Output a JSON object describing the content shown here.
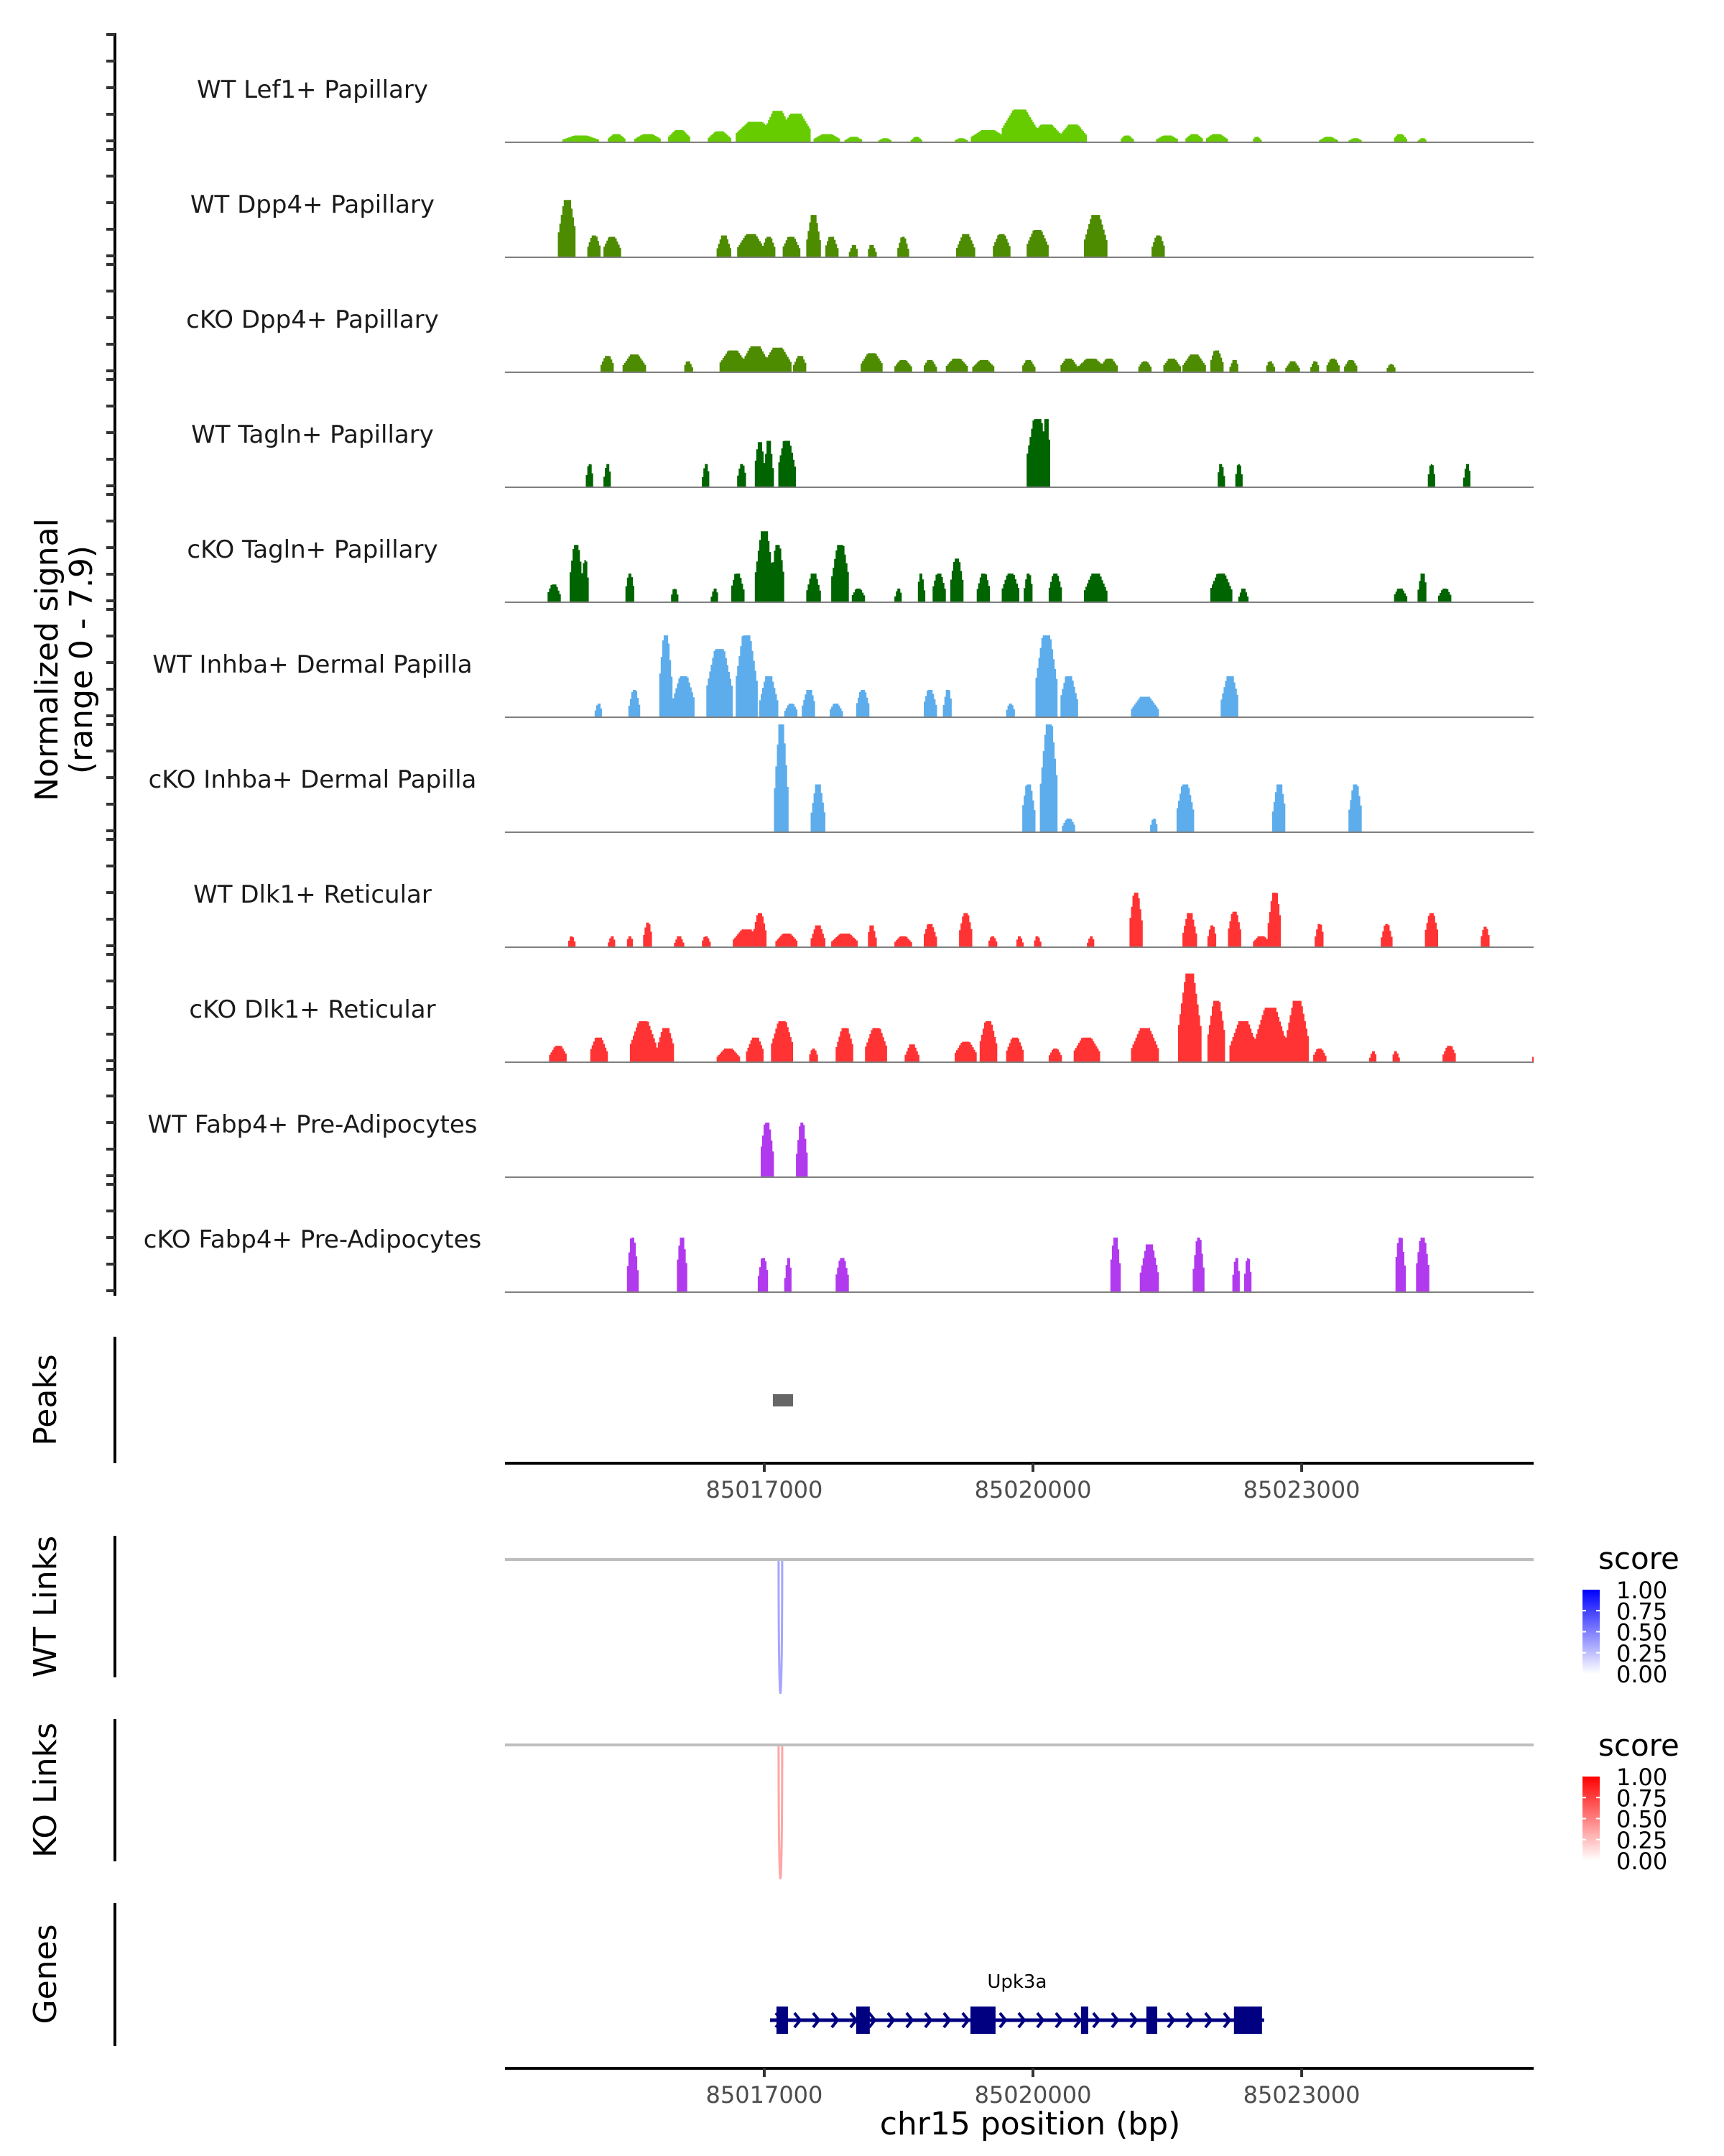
{
  "chart_data": {
    "type": "area",
    "title": "",
    "region": {
      "chrom": "chr15",
      "start": 85014105,
      "end": 85025590
    },
    "ylabel": "Normalized signal",
    "ylabel_sub": "(range 0 - 7.9)",
    "ylim": [
      0,
      7.9
    ],
    "xlabel": "chr15 position (bp)",
    "x_ticks": [
      85017000,
      85020000,
      85023000
    ],
    "x_tick_labels": [
      "85017000",
      "85020000",
      "85023000"
    ],
    "tracks": [
      {
        "name": "WT Lef1+ Papillary",
        "color": "#66CC00",
        "peaks": [
          [
            85014950,
            400,
            0.5
          ],
          [
            85015350,
            200,
            0.6
          ],
          [
            85015700,
            300,
            0.6
          ],
          [
            85016050,
            250,
            0.9
          ],
          [
            85016500,
            250,
            0.8
          ],
          [
            85016900,
            450,
            1.5
          ],
          [
            85017150,
            300,
            2.3
          ],
          [
            85017350,
            350,
            2.1
          ],
          [
            85017700,
            300,
            0.6
          ],
          [
            85018000,
            200,
            0.4
          ],
          [
            85018350,
            150,
            0.3
          ],
          [
            85018700,
            120,
            0.4
          ],
          [
            85019200,
            150,
            0.3
          ],
          [
            85019500,
            400,
            0.9
          ],
          [
            85019850,
            400,
            2.4
          ],
          [
            85020150,
            350,
            1.3
          ],
          [
            85020450,
            300,
            1.3
          ],
          [
            85021050,
            150,
            0.5
          ],
          [
            85021500,
            250,
            0.5
          ],
          [
            85021800,
            200,
            0.6
          ],
          [
            85022050,
            250,
            0.6
          ],
          [
            85022500,
            100,
            0.4
          ],
          [
            85023300,
            200,
            0.4
          ],
          [
            85023600,
            150,
            0.3
          ],
          [
            85024100,
            150,
            0.6
          ],
          [
            85024350,
            100,
            0.3
          ]
        ]
      },
      {
        "name": "WT Dpp4+ Papillary",
        "color": "#4D8B00",
        "peaks": [
          [
            85014800,
            200,
            4.2
          ],
          [
            85015100,
            150,
            1.6
          ],
          [
            85015300,
            200,
            1.5
          ],
          [
            85016550,
            150,
            1.6
          ],
          [
            85016850,
            300,
            1.7
          ],
          [
            85017050,
            150,
            1.5
          ],
          [
            85017300,
            200,
            1.5
          ],
          [
            85017550,
            150,
            3.1
          ],
          [
            85017750,
            150,
            1.5
          ],
          [
            85018000,
            100,
            0.9
          ],
          [
            85018200,
            100,
            0.9
          ],
          [
            85018550,
            120,
            1.5
          ],
          [
            85019250,
            200,
            1.7
          ],
          [
            85019650,
            200,
            1.7
          ],
          [
            85020050,
            250,
            2.0
          ],
          [
            85020700,
            250,
            3.1
          ],
          [
            85021400,
            150,
            1.6
          ]
        ]
      },
      {
        "name": "cKO Dpp4+ Papillary",
        "color": "#4D8B00",
        "peaks": [
          [
            85015250,
            150,
            1.2
          ],
          [
            85015550,
            250,
            1.3
          ],
          [
            85016150,
            100,
            0.8
          ],
          [
            85016650,
            300,
            1.6
          ],
          [
            85016900,
            300,
            1.9
          ],
          [
            85017150,
            300,
            1.8
          ],
          [
            85017400,
            150,
            1.2
          ],
          [
            85018200,
            250,
            1.4
          ],
          [
            85018550,
            200,
            0.9
          ],
          [
            85018850,
            150,
            0.9
          ],
          [
            85019150,
            250,
            1.0
          ],
          [
            85019450,
            250,
            0.9
          ],
          [
            85019950,
            150,
            0.9
          ],
          [
            85020400,
            200,
            1.0
          ],
          [
            85020650,
            300,
            1.0
          ],
          [
            85020850,
            200,
            1.0
          ],
          [
            85021250,
            150,
            0.8
          ],
          [
            85021550,
            200,
            1.0
          ],
          [
            85021800,
            250,
            1.3
          ],
          [
            85022050,
            150,
            1.6
          ],
          [
            85022250,
            100,
            0.9
          ],
          [
            85022650,
            100,
            0.8
          ],
          [
            85022900,
            150,
            0.8
          ],
          [
            85023150,
            100,
            0.8
          ],
          [
            85023350,
            150,
            1.0
          ],
          [
            85023550,
            150,
            0.9
          ],
          [
            85024000,
            100,
            0.6
          ]
        ]
      },
      {
        "name": "WT Tagln+ Papillary",
        "color": "#006400",
        "peaks": [
          [
            85015050,
            80,
            1.7
          ],
          [
            85015250,
            80,
            1.7
          ],
          [
            85016350,
            80,
            1.7
          ],
          [
            85016750,
            100,
            1.7
          ],
          [
            85016950,
            120,
            3.3
          ],
          [
            85017050,
            100,
            3.4
          ],
          [
            85017250,
            200,
            3.4
          ],
          [
            85020050,
            250,
            5.0
          ],
          [
            85020150,
            100,
            5.0
          ],
          [
            85022100,
            80,
            1.7
          ],
          [
            85022300,
            80,
            1.7
          ],
          [
            85024450,
            80,
            1.7
          ],
          [
            85024850,
            80,
            1.7
          ]
        ]
      },
      {
        "name": "cKO Tagln+ Papillary",
        "color": "#006400",
        "peaks": [
          [
            85014650,
            150,
            1.3
          ],
          [
            85014900,
            150,
            4.2
          ],
          [
            85015000,
            80,
            3.1
          ],
          [
            85015500,
            100,
            2.1
          ],
          [
            85016000,
            80,
            1.0
          ],
          [
            85016450,
            80,
            1.0
          ],
          [
            85016700,
            150,
            2.1
          ],
          [
            85017000,
            200,
            5.2
          ],
          [
            85017150,
            150,
            4.2
          ],
          [
            85017550,
            150,
            2.1
          ],
          [
            85017850,
            200,
            4.2
          ],
          [
            85018050,
            150,
            1.0
          ],
          [
            85018500,
            80,
            1.0
          ],
          [
            85018750,
            80,
            2.1
          ],
          [
            85018950,
            150,
            2.1
          ],
          [
            85019150,
            150,
            3.2
          ],
          [
            85019450,
            150,
            2.1
          ],
          [
            85019750,
            200,
            2.1
          ],
          [
            85019950,
            100,
            2.1
          ],
          [
            85020250,
            150,
            2.1
          ],
          [
            85020700,
            250,
            2.1
          ],
          [
            85022100,
            250,
            2.1
          ],
          [
            85022350,
            100,
            1.0
          ],
          [
            85024100,
            150,
            1.0
          ],
          [
            85024350,
            100,
            2.1
          ],
          [
            85024600,
            150,
            1.0
          ]
        ]
      },
      {
        "name": "WT Inhba+ Dermal Papilla",
        "color": "#5DADEC",
        "peaks": [
          [
            85015150,
            80,
            1.0
          ],
          [
            85015550,
            120,
            2.0
          ],
          [
            85015900,
            150,
            6.0
          ],
          [
            85016100,
            250,
            3.0
          ],
          [
            85016500,
            300,
            5.0
          ],
          [
            85016800,
            250,
            6.0
          ],
          [
            85017050,
            200,
            3.0
          ],
          [
            85017300,
            150,
            1.0
          ],
          [
            85017500,
            150,
            2.0
          ],
          [
            85017800,
            150,
            1.0
          ],
          [
            85018100,
            150,
            2.0
          ],
          [
            85018850,
            150,
            2.0
          ],
          [
            85019050,
            100,
            2.0
          ],
          [
            85019750,
            100,
            1.0
          ],
          [
            85020150,
            250,
            6.0
          ],
          [
            85020400,
            200,
            3.0
          ],
          [
            85021250,
            300,
            1.5
          ],
          [
            85022200,
            200,
            3.0
          ]
        ]
      },
      {
        "name": "cKO Inhba+ Dermal Papilla",
        "color": "#5DADEC",
        "peaks": [
          [
            85017190,
            150,
            7.9
          ],
          [
            85017600,
            150,
            3.5
          ],
          [
            85019950,
            150,
            3.5
          ],
          [
            85020180,
            200,
            7.9
          ],
          [
            85020400,
            150,
            1.0
          ],
          [
            85021350,
            80,
            1.0
          ],
          [
            85021700,
            200,
            3.5
          ],
          [
            85022750,
            150,
            3.5
          ],
          [
            85023600,
            150,
            3.5
          ]
        ]
      },
      {
        "name": "WT Dlk1+ Reticular",
        "color": "#FF3333",
        "peaks": [
          [
            85014850,
            80,
            0.8
          ],
          [
            85015300,
            80,
            0.8
          ],
          [
            85015500,
            80,
            0.8
          ],
          [
            85015700,
            100,
            1.8
          ],
          [
            85016050,
            100,
            0.8
          ],
          [
            85016350,
            100,
            0.8
          ],
          [
            85016800,
            300,
            1.3
          ],
          [
            85016950,
            150,
            2.5
          ],
          [
            85017250,
            250,
            1.0
          ],
          [
            85017600,
            150,
            1.6
          ],
          [
            85017900,
            300,
            1.0
          ],
          [
            85018200,
            100,
            1.6
          ],
          [
            85018550,
            200,
            0.8
          ],
          [
            85018850,
            150,
            1.7
          ],
          [
            85019250,
            150,
            2.5
          ],
          [
            85019550,
            100,
            0.8
          ],
          [
            85019850,
            80,
            0.8
          ],
          [
            85020050,
            80,
            0.8
          ],
          [
            85020650,
            80,
            0.8
          ],
          [
            85021150,
            150,
            4.0
          ],
          [
            85021750,
            150,
            2.5
          ],
          [
            85022000,
            100,
            1.6
          ],
          [
            85022250,
            150,
            2.6
          ],
          [
            85022550,
            200,
            0.8
          ],
          [
            85022700,
            150,
            4.0
          ],
          [
            85023200,
            100,
            1.7
          ],
          [
            85023950,
            120,
            1.7
          ],
          [
            85024450,
            150,
            2.5
          ],
          [
            85025050,
            100,
            1.5
          ]
        ]
      },
      {
        "name": "cKO Dlk1+ Reticular",
        "color": "#FF3333",
        "peaks": [
          [
            85014700,
            200,
            1.2
          ],
          [
            85015150,
            200,
            1.8
          ],
          [
            85015650,
            300,
            3.0
          ],
          [
            85015900,
            200,
            2.5
          ],
          [
            85016600,
            250,
            1.0
          ],
          [
            85016900,
            200,
            1.8
          ],
          [
            85017200,
            250,
            3.0
          ],
          [
            85017550,
            100,
            1.0
          ],
          [
            85017900,
            200,
            2.5
          ],
          [
            85018250,
            250,
            2.5
          ],
          [
            85018650,
            150,
            1.3
          ],
          [
            85019250,
            250,
            1.5
          ],
          [
            85019500,
            200,
            3.0
          ],
          [
            85019800,
            200,
            1.8
          ],
          [
            85020250,
            150,
            1.0
          ],
          [
            85020600,
            300,
            1.8
          ],
          [
            85021250,
            300,
            2.5
          ],
          [
            85021750,
            250,
            6.5
          ],
          [
            85022050,
            200,
            4.5
          ],
          [
            85022350,
            300,
            3.0
          ],
          [
            85022650,
            350,
            4.0
          ],
          [
            85022950,
            250,
            4.5
          ],
          [
            85023200,
            150,
            1.0
          ],
          [
            85023800,
            80,
            0.8
          ],
          [
            85024050,
            80,
            0.8
          ],
          [
            85024650,
            150,
            1.2
          ],
          [
            85025600,
            50,
            0.6
          ]
        ]
      },
      {
        "name": "WT Fabp4+ Pre-Adipocytes",
        "color": "#B23AEE",
        "peaks": [
          [
            85017030,
            150,
            4.0
          ],
          [
            85017420,
            120,
            4.0
          ]
        ]
      },
      {
        "name": "cKO Fabp4+ Pre-Adipocytes",
        "color": "#B23AEE",
        "peaks": [
          [
            85015530,
            120,
            4.0
          ],
          [
            85016080,
            120,
            4.0
          ],
          [
            85016990,
            120,
            2.5
          ],
          [
            85017270,
            80,
            2.5
          ],
          [
            85017870,
            150,
            2.5
          ],
          [
            85020920,
            120,
            4.0
          ],
          [
            85021300,
            200,
            3.5
          ],
          [
            85021850,
            120,
            4.0
          ],
          [
            85022270,
            80,
            2.5
          ],
          [
            85022400,
            80,
            2.5
          ],
          [
            85024100,
            120,
            4.0
          ],
          [
            85024350,
            150,
            4.0
          ]
        ]
      }
    ],
    "peaks_track": {
      "label": "Peaks",
      "regions": [
        [
          85017096,
          85017321
        ]
      ],
      "color": "#666666"
    },
    "links": [
      {
        "label": "WT Links",
        "color_low": "#FFFFFF",
        "color_high": "#0000FF",
        "arcs": [
          {
            "start": 85017160,
            "end": 85017200,
            "score": 0.35
          }
        ],
        "legend": {
          "title": "score",
          "ticks": [
            "1.00",
            "0.75",
            "0.50",
            "0.25",
            "0.00"
          ]
        }
      },
      {
        "label": "KO Links",
        "color_low": "#FFFFFF",
        "color_high": "#FF0000",
        "arcs": [
          {
            "start": 85017160,
            "end": 85017200,
            "score": 0.35
          }
        ],
        "legend": {
          "title": "score",
          "ticks": [
            "1.00",
            "0.75",
            "0.50",
            "0.25",
            "0.00"
          ]
        }
      }
    ],
    "genes": {
      "label": "Genes",
      "color": "#000080",
      "items": [
        {
          "name": "Upk3a",
          "strand": "+",
          "start": 85017064,
          "end": 85022581,
          "exons": [
            [
              85017136,
              85017265
            ],
            [
              85018026,
              85018178
            ],
            [
              85019302,
              85019582
            ],
            [
              85020536,
              85020617
            ],
            [
              85021266,
              85021387
            ],
            [
              85022244,
              85022557
            ]
          ]
        }
      ]
    }
  }
}
